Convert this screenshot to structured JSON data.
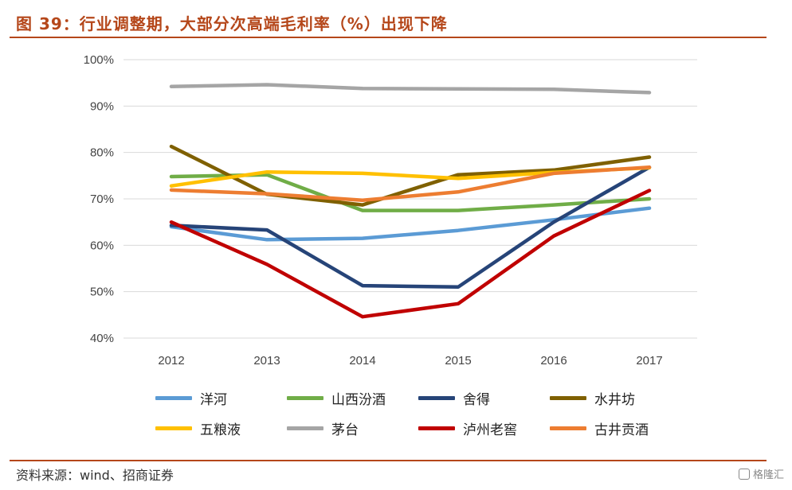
{
  "header": {
    "title": "图 39：行业调整期，大部分次高端毛利率（%）出现下降"
  },
  "footer": {
    "source": "资料来源：wind、招商证券",
    "watermark": "格隆汇"
  },
  "chart_data": {
    "type": "line",
    "title": "",
    "xlabel": "",
    "ylabel": "",
    "categories": [
      "2012",
      "2013",
      "2014",
      "2015",
      "2016",
      "2017"
    ],
    "ylim": [
      40,
      100
    ],
    "yticks": [
      40,
      50,
      60,
      70,
      80,
      90,
      100
    ],
    "ytick_labels": [
      "40%",
      "50%",
      "60%",
      "70%",
      "80%",
      "90%",
      "100%"
    ],
    "grid": true,
    "legend_position": "bottom",
    "series": [
      {
        "name": "洋河",
        "color": "#5b9bd5",
        "values": [
          64.0,
          61.2,
          61.5,
          63.2,
          65.5,
          68.0
        ]
      },
      {
        "name": "山西汾酒",
        "color": "#70ad47",
        "values": [
          74.8,
          75.2,
          67.5,
          67.5,
          68.7,
          70.0
        ]
      },
      {
        "name": "舍得",
        "color": "#264478",
        "values": [
          64.3,
          63.3,
          51.3,
          51.0,
          65.0,
          76.8
        ]
      },
      {
        "name": "水井坊",
        "color": "#7f6000",
        "values": [
          81.3,
          71.0,
          68.7,
          75.2,
          76.2,
          79.0
        ]
      },
      {
        "name": "五粮液",
        "color": "#ffc000",
        "values": [
          72.8,
          75.8,
          75.5,
          74.4,
          75.7,
          76.7
        ]
      },
      {
        "name": "茅台",
        "color": "#a5a5a5",
        "values": [
          94.2,
          94.6,
          93.8,
          93.7,
          93.6,
          92.9
        ]
      },
      {
        "name": "泸州老窖",
        "color": "#c00000",
        "values": [
          65.0,
          55.9,
          44.6,
          47.4,
          62.0,
          71.8
        ]
      },
      {
        "name": "古井贡酒",
        "color": "#ed7d31",
        "values": [
          71.9,
          71.1,
          69.7,
          71.5,
          75.5,
          76.8
        ]
      }
    ]
  }
}
